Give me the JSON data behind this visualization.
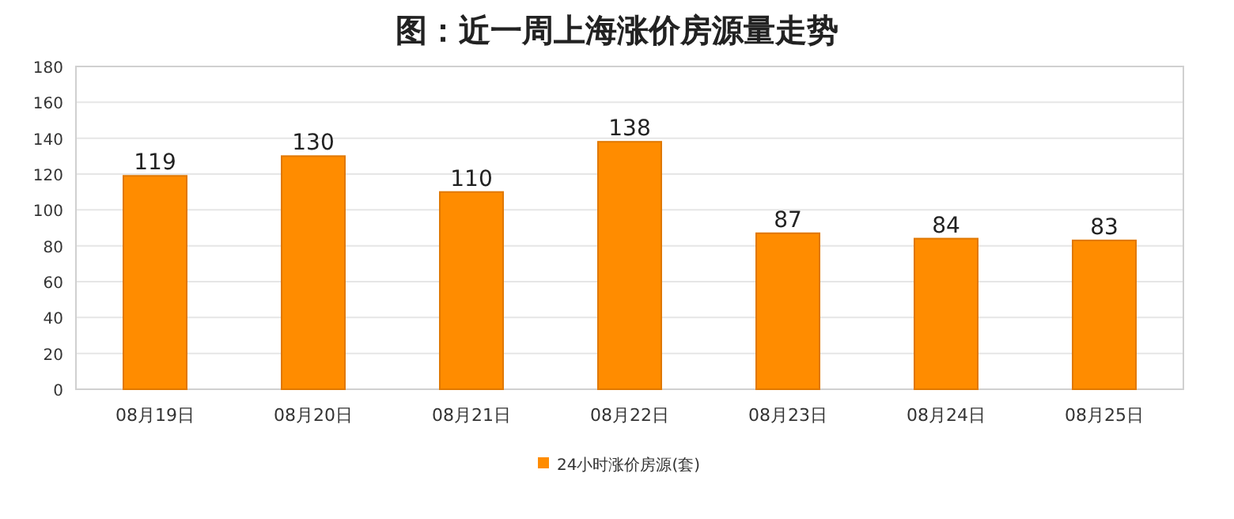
{
  "chart_data": {
    "type": "bar",
    "title": "图：近一周上海涨价房源量走势",
    "categories": [
      "08月19日",
      "08月20日",
      "08月21日",
      "08月22日",
      "08月23日",
      "08月24日",
      "08月25日"
    ],
    "series": [
      {
        "name": "24小时涨价房源(套)",
        "color": "#ff8c00",
        "values": [
          119,
          130,
          110,
          138,
          87,
          84,
          83
        ]
      }
    ],
    "ylim": [
      0,
      180
    ],
    "yticks": [
      0,
      20,
      40,
      60,
      80,
      100,
      120,
      140,
      160,
      180
    ],
    "grid": "y",
    "data_labels": true,
    "legend": "bottom"
  }
}
